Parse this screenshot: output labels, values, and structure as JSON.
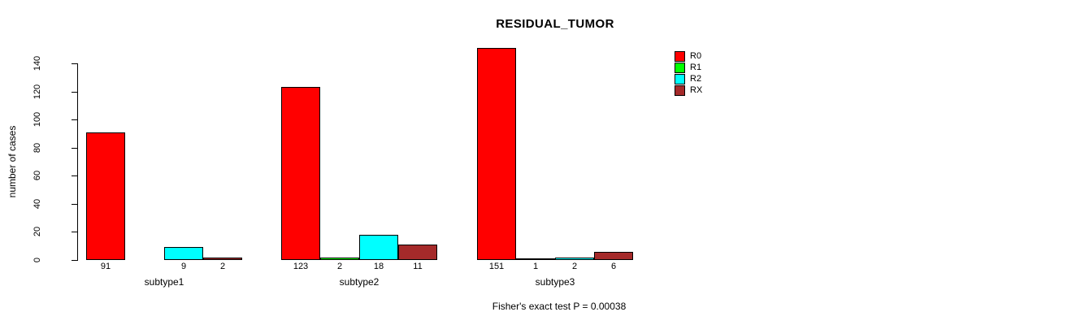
{
  "chart_data": {
    "type": "bar",
    "title": "RESIDUAL_TUMOR",
    "ylabel": "number of cases",
    "xlabel": "",
    "ylim": [
      0,
      140
    ],
    "yticks": [
      0,
      20,
      40,
      60,
      80,
      100,
      120,
      140
    ],
    "grid": false,
    "background": "#ffffff",
    "categories": [
      "subtype1",
      "subtype2",
      "subtype3"
    ],
    "series": [
      {
        "name": "R0",
        "color": "#ff0000",
        "values": [
          91,
          123,
          151
        ]
      },
      {
        "name": "R1",
        "color": "#00ff00",
        "values": [
          0,
          2,
          1
        ]
      },
      {
        "name": "R2",
        "color": "#00ffff",
        "values": [
          9,
          18,
          2
        ]
      },
      {
        "name": "RX",
        "color": "#a52a2a",
        "values": [
          2,
          11,
          6
        ]
      }
    ],
    "value_labels": [
      [
        "91",
        "",
        "9",
        "2"
      ],
      [
        "123",
        "2",
        "18",
        "11"
      ],
      [
        "151",
        "1",
        "2",
        "6"
      ]
    ],
    "legend": {
      "position": "top-right",
      "entries": [
        "R0",
        "R1",
        "R2",
        "RX"
      ]
    },
    "annotation": "Fisher's exact test P = 0.00038"
  }
}
